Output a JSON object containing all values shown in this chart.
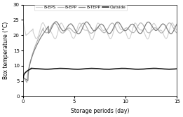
{
  "title": "",
  "xlabel": "Storage periods (day)",
  "ylabel": "Box temperature (°C)",
  "xlim": [
    0,
    15
  ],
  "ylim": [
    0,
    30
  ],
  "xticks": [
    0,
    5,
    10,
    15
  ],
  "yticks": [
    0,
    5,
    10,
    15,
    20,
    25,
    30
  ],
  "legend": [
    "B-EPS",
    "B-EPP",
    "B-TEPP",
    "Outside"
  ],
  "colors": {
    "B-EPS": "#b0b0b0",
    "B-EPP": "#808080",
    "B-TEPP": "#1a1a1a",
    "Outside": "#d0d0d0"
  },
  "linewidths": {
    "B-EPS": 0.8,
    "B-EPP": 0.9,
    "B-TEPP": 1.2,
    "Outside": 0.8
  }
}
